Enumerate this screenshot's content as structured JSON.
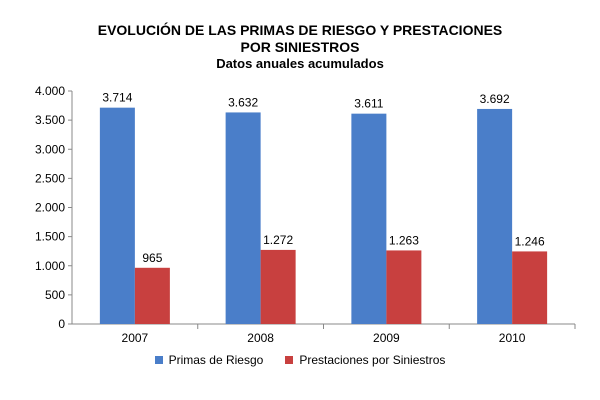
{
  "chart_data": {
    "type": "bar",
    "title_lines": [
      "EVOLUCIÓN DE LAS PRIMAS DE RIESGO Y PRESTACIONES",
      "POR SINIESTROS"
    ],
    "subtitle": "Datos anuales acumulados",
    "categories": [
      "2007",
      "2008",
      "2009",
      "2010"
    ],
    "series": [
      {
        "name": "Primas de Riesgo",
        "color": "#4a7ec9",
        "values": [
          3714,
          3632,
          3611,
          3692
        ],
        "labels": [
          "3.714",
          "3.632",
          "3.611",
          "3.692"
        ]
      },
      {
        "name": "Prestaciones por Siniestros",
        "color": "#c8403f",
        "values": [
          965,
          1272,
          1263,
          1246
        ],
        "labels": [
          "965",
          "1.272",
          "1.263",
          "1.246"
        ]
      }
    ],
    "ylim": [
      0,
      4000
    ],
    "yticks": [
      0,
      500,
      1000,
      1500,
      2000,
      2500,
      3000,
      3500,
      4000
    ],
    "ytick_labels": [
      "0",
      "500",
      "1.000",
      "1.500",
      "2.000",
      "2.500",
      "3.000",
      "3.500",
      "4.000"
    ],
    "grid": false,
    "legend_position": "bottom"
  }
}
